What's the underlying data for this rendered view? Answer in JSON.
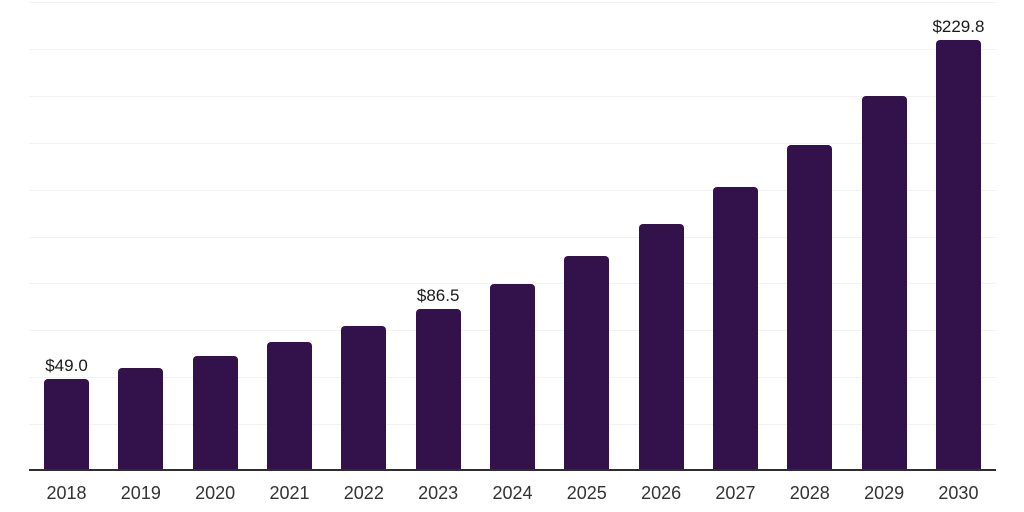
{
  "chart_data": {
    "type": "bar",
    "categories": [
      "2018",
      "2019",
      "2020",
      "2021",
      "2022",
      "2023",
      "2024",
      "2025",
      "2026",
      "2027",
      "2028",
      "2029",
      "2030"
    ],
    "values": [
      49.0,
      54.9,
      61.5,
      68.9,
      77.2,
      86.5,
      99.5,
      114.4,
      131.5,
      151.2,
      173.8,
      199.9,
      229.8
    ],
    "value_labels": [
      {
        "index": 0,
        "text": "$49.0"
      },
      {
        "index": 5,
        "text": "$86.5"
      },
      {
        "index": 12,
        "text": "$229.8"
      }
    ],
    "ylim": [
      0,
      250
    ],
    "grid": true,
    "gridline_step": 25,
    "legend_position": "none",
    "colors": {
      "bar": "#33114B",
      "axis": "#2D2D32",
      "grid": "#F2F2F4",
      "value_label": "#1A1A1A",
      "tick_label": "#333333",
      "background": "#FFFFFF"
    }
  }
}
